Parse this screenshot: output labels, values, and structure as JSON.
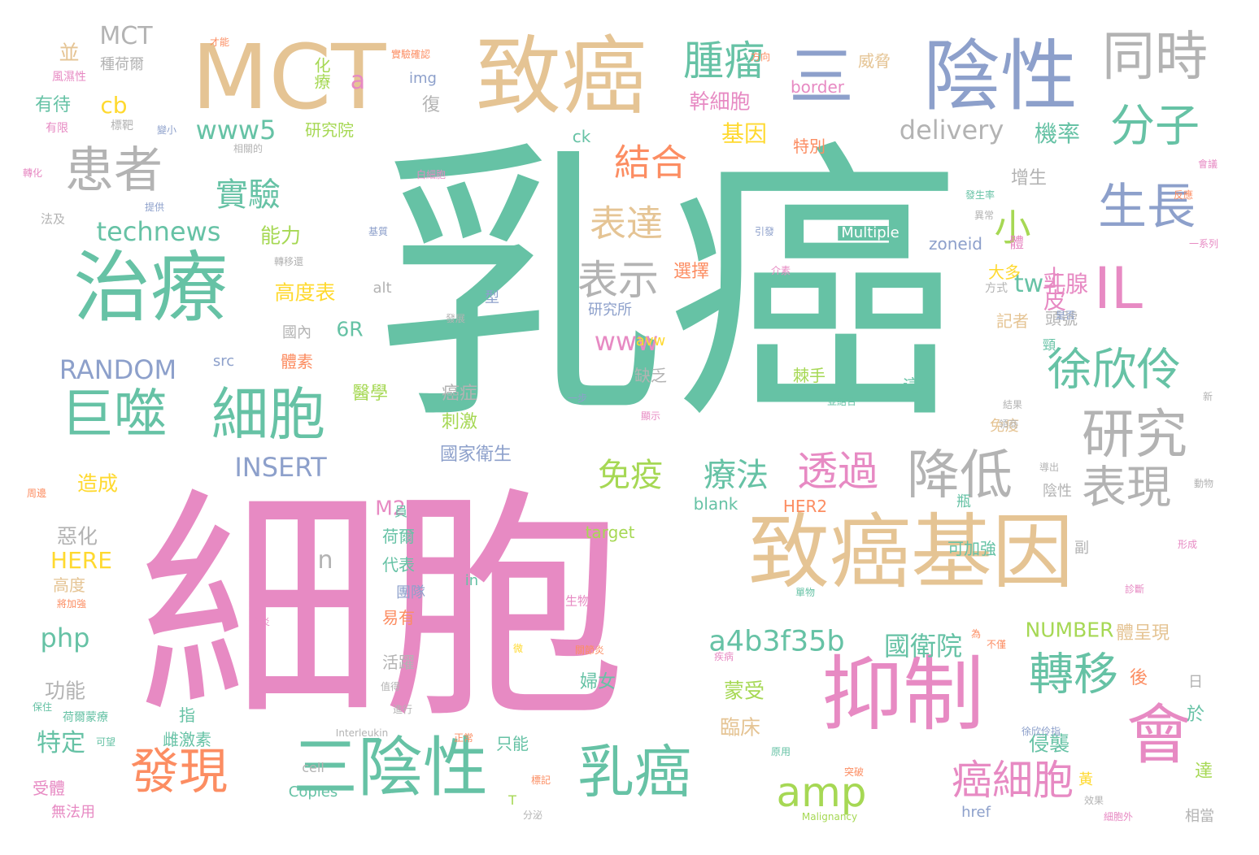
{
  "title": "",
  "words": [
    {
      "text": "乳癌",
      "color": "#66c2a5"
    },
    {
      "text": "細胞",
      "color": "#e78ac3"
    },
    {
      "text": "致癌",
      "color": "#e5c494"
    },
    {
      "text": "MCT",
      "color": "#e5c494"
    },
    {
      "text": "陰性",
      "color": "#8da0cb"
    },
    {
      "text": "三",
      "color": "#8da0cb"
    },
    {
      "text": "同時",
      "color": "#b3b3b3"
    },
    {
      "text": "治療",
      "color": "#66c2a5"
    },
    {
      "text": "患者",
      "color": "#b3b3b3"
    },
    {
      "text": "腫瘤",
      "color": "#66c2a5"
    },
    {
      "text": "分子",
      "color": "#66c2a5"
    },
    {
      "text": "致癌基因",
      "color": "#e5c494"
    },
    {
      "text": "抑制",
      "color": "#e78ac3"
    },
    {
      "text": "會",
      "color": "#e78ac3"
    },
    {
      "text": "三陰性",
      "color": "#66c2a5"
    },
    {
      "text": "乳癌",
      "color": "#66c2a5"
    },
    {
      "text": "發現",
      "color": "#fc8d62"
    },
    {
      "text": "巨噬",
      "color": "#66c2a5"
    },
    {
      "text": "細胞",
      "color": "#66c2a5"
    },
    {
      "text": "研究",
      "color": "#b3b3b3"
    },
    {
      "text": "降低",
      "color": "#b3b3b3"
    },
    {
      "text": "表現",
      "color": "#b3b3b3"
    },
    {
      "text": "徐欣伶",
      "color": "#66c2a5"
    },
    {
      "text": "生長",
      "color": "#8da0cb"
    },
    {
      "text": "IL",
      "color": "#e78ac3"
    },
    {
      "text": "小",
      "color": "#a6d854"
    },
    {
      "text": "結合",
      "color": "#fc8d62"
    },
    {
      "text": "表達",
      "color": "#e5c494"
    },
    {
      "text": "表示",
      "color": "#b3b3b3"
    },
    {
      "text": "實驗",
      "color": "#66c2a5"
    },
    {
      "text": "透過",
      "color": "#e78ac3"
    },
    {
      "text": "轉移",
      "color": "#66c2a5"
    },
    {
      "text": "癌細胞",
      "color": "#e78ac3"
    },
    {
      "text": "amp",
      "color": "#a6d854"
    },
    {
      "text": "免疫",
      "color": "#a6d854"
    },
    {
      "text": "療法",
      "color": "#66c2a5"
    },
    {
      "text": "a4b3f35b",
      "color": "#66c2a5"
    },
    {
      "text": "國衛院",
      "color": "#66c2a5"
    },
    {
      "text": "delivery",
      "color": "#b3b3b3"
    },
    {
      "text": "technews",
      "color": "#66c2a5"
    },
    {
      "text": "www5",
      "color": "#66c2a5"
    },
    {
      "text": "RANDOM",
      "color": "#8da0cb"
    },
    {
      "text": "INSERT",
      "color": "#8da0cb"
    },
    {
      "text": "www",
      "color": "#e78ac3"
    },
    {
      "text": "php",
      "color": "#66c2a5"
    },
    {
      "text": "NUMBER",
      "color": "#a6d854"
    },
    {
      "text": "HERE",
      "color": "#ffd92f"
    },
    {
      "text": "幹細胞",
      "color": "#e78ac3"
    },
    {
      "text": "基因",
      "color": "#ffd92f"
    },
    {
      "text": "機率",
      "color": "#66c2a5"
    },
    {
      "text": "乳腺",
      "color": "#e78ac3"
    },
    {
      "text": "上皮",
      "color": "#e78ac3"
    },
    {
      "text": "tw",
      "color": "#66c2a5"
    },
    {
      "text": "a",
      "color": "#e78ac3"
    },
    {
      "text": "cb",
      "color": "#ffd92f"
    },
    {
      "text": "能力",
      "color": "#a6d854"
    },
    {
      "text": "高度表",
      "color": "#ffd92f"
    },
    {
      "text": "6R",
      "color": "#66c2a5"
    },
    {
      "text": "M2",
      "color": "#e78ac3"
    },
    {
      "text": "n",
      "color": "#b3b3b3"
    },
    {
      "text": "癌症",
      "color": "#b3b3b3"
    },
    {
      "text": "刺激",
      "color": "#a6d854"
    },
    {
      "text": "國家衛生",
      "color": "#8da0cb"
    },
    {
      "text": "造成",
      "color": "#ffd92f"
    },
    {
      "text": "惡化",
      "color": "#b3b3b3"
    },
    {
      "text": "功能",
      "color": "#b3b3b3"
    },
    {
      "text": "特定",
      "color": "#66c2a5"
    },
    {
      "text": "蒙受",
      "color": "#a6d854"
    },
    {
      "text": "臨床",
      "color": "#e5c494"
    },
    {
      "text": "侵襲",
      "color": "#66c2a5"
    },
    {
      "text": "婦女",
      "color": "#66c2a5"
    },
    {
      "text": "研究院",
      "color": "#a6d854"
    },
    {
      "text": "並",
      "color": "#e5c494"
    },
    {
      "text": "有待",
      "color": "#66c2a5"
    },
    {
      "text": "特別",
      "color": "#fc8d62"
    },
    {
      "text": "增生",
      "color": "#b3b3b3"
    },
    {
      "text": "化療",
      "color": "#a6d854"
    },
    {
      "text": "威脅",
      "color": "#e5c494"
    },
    {
      "text": "border",
      "color": "#e78ac3"
    },
    {
      "text": "img",
      "color": "#8da0cb"
    },
    {
      "text": "ck",
      "color": "#66c2a5"
    },
    {
      "text": "Multiple",
      "color": "#ffffff"
    },
    {
      "text": "zoneid",
      "color": "#8da0cb"
    },
    {
      "text": "選擇",
      "color": "#fc8d62"
    },
    {
      "text": "大多",
      "color": "#ffd92f"
    },
    {
      "text": "記者",
      "color": "#e5c494"
    },
    {
      "text": "頭號",
      "color": "#b3b3b3"
    },
    {
      "text": "研究所",
      "color": "#8da0cb"
    },
    {
      "text": "缺乏",
      "color": "#b3b3b3"
    },
    {
      "text": "棘手",
      "color": "#a6d854"
    },
    {
      "text": "這些",
      "color": "#66c2a5"
    },
    {
      "text": "醫學",
      "color": "#a6d854"
    },
    {
      "text": "體素",
      "color": "#fc8d62"
    },
    {
      "text": "國內",
      "color": "#b3b3b3"
    },
    {
      "text": "src",
      "color": "#8da0cb"
    },
    {
      "text": "avw",
      "color": "#ffd92f"
    },
    {
      "text": "免疫",
      "color": "#e5c494"
    },
    {
      "text": "陰性",
      "color": "#b3b3b3"
    },
    {
      "text": "blank",
      "color": "#66c2a5"
    },
    {
      "text": "HER2",
      "color": "#fc8d62"
    },
    {
      "text": "target",
      "color": "#a6d854"
    },
    {
      "text": "可加強",
      "color": "#66c2a5"
    },
    {
      "text": "荷爾",
      "color": "#66c2a5"
    },
    {
      "text": "代表",
      "color": "#66c2a5"
    },
    {
      "text": "團隊",
      "color": "#8da0cb"
    },
    {
      "text": "易有",
      "color": "#fc8d62"
    },
    {
      "text": "活躍",
      "color": "#b3b3b3"
    },
    {
      "text": "體呈現",
      "color": "#e5c494"
    },
    {
      "text": "後",
      "color": "#fc8d62"
    },
    {
      "text": "於",
      "color": "#66c2a5"
    },
    {
      "text": "黃",
      "color": "#ffd92f"
    },
    {
      "text": "達",
      "color": "#a6d854"
    },
    {
      "text": "相當",
      "color": "#b3b3b3"
    },
    {
      "text": "href",
      "color": "#8da0cb"
    },
    {
      "text": "Copies",
      "color": "#66c2a5"
    },
    {
      "text": "cell",
      "color": "#b3b3b3"
    },
    {
      "text": "只能",
      "color": "#66c2a5"
    },
    {
      "text": "指",
      "color": "#66c2a5"
    },
    {
      "text": "雌激素",
      "color": "#66c2a5"
    },
    {
      "text": "受體",
      "color": "#e78ac3"
    },
    {
      "text": "無法用",
      "color": "#e78ac3"
    },
    {
      "text": "MCT",
      "color": "#b3b3b3"
    },
    {
      "text": "種荷爾",
      "color": "#b3b3b3"
    },
    {
      "text": "風濕性",
      "color": "#e78ac3"
    },
    {
      "text": "有限",
      "color": "#e78ac3"
    },
    {
      "text": "標靶",
      "color": "#b3b3b3"
    },
    {
      "text": "法及",
      "color": "#b3b3b3"
    },
    {
      "text": "提供",
      "color": "#8da0cb"
    },
    {
      "text": "復",
      "color": "#b3b3b3"
    },
    {
      "text": "alt",
      "color": "#b3b3b3"
    },
    {
      "text": "型",
      "color": "#8da0cb"
    },
    {
      "text": "員",
      "color": "#66c2a5"
    },
    {
      "text": "瓶",
      "color": "#66c2a5"
    },
    {
      "text": "副",
      "color": "#b3b3b3"
    },
    {
      "text": "in",
      "color": "#66c2a5"
    },
    {
      "text": "高度",
      "color": "#e5c494"
    },
    {
      "text": "生物",
      "color": "#e78ac3"
    },
    {
      "text": "日",
      "color": "#b3b3b3"
    },
    {
      "text": "動物",
      "color": "#b3b3b3"
    },
    {
      "text": "形成",
      "color": "#e78ac3"
    },
    {
      "text": "診斷",
      "color": "#e78ac3"
    },
    {
      "text": "Malignancy",
      "color": "#a6d854"
    },
    {
      "text": "Interleukin",
      "color": "#b3b3b3"
    },
    {
      "text": "T",
      "color": "#a6d854"
    },
    {
      "text": "突破",
      "color": "#fc8d62"
    },
    {
      "text": "發生率",
      "color": "#66c2a5"
    },
    {
      "text": "轉移還",
      "color": "#b3b3b3"
    },
    {
      "text": "一系列",
      "color": "#e78ac3"
    },
    {
      "text": "介素",
      "color": "#e78ac3"
    },
    {
      "text": "方式",
      "color": "#b3b3b3"
    },
    {
      "text": "頸",
      "color": "#66c2a5"
    },
    {
      "text": "體",
      "color": "#e78ac3"
    },
    {
      "text": "是否",
      "color": "#8da0cb"
    },
    {
      "text": "結果",
      "color": "#b3b3b3"
    },
    {
      "text": "新",
      "color": "#b3b3b3"
    },
    {
      "text": "效果",
      "color": "#b3b3b3"
    },
    {
      "text": "原用",
      "color": "#66c2a5"
    },
    {
      "text": "荷爾蒙療",
      "color": "#66c2a5"
    },
    {
      "text": "可望",
      "color": "#66c2a5"
    },
    {
      "text": "標記",
      "color": "#fc8d62"
    },
    {
      "text": "分泌",
      "color": "#b3b3b3"
    },
    {
      "text": "徐欣伶指",
      "color": "#8da0cb"
    },
    {
      "text": "細胞外",
      "color": "#e78ac3"
    },
    {
      "text": "實驗確認",
      "color": "#fc8d62"
    },
    {
      "text": "才能",
      "color": "#fc8d62"
    },
    {
      "text": "方向",
      "color": "#fc8d62"
    },
    {
      "text": "會議",
      "color": "#e78ac3"
    },
    {
      "text": "反應",
      "color": "#fc8d62"
    },
    {
      "text": "異常",
      "color": "#b3b3b3"
    },
    {
      "text": "引發",
      "color": "#8da0cb"
    },
    {
      "text": "轉化",
      "color": "#e78ac3"
    },
    {
      "text": "白細胞",
      "color": "#e78ac3"
    },
    {
      "text": "周邊",
      "color": "#fc8d62"
    },
    {
      "text": "關節炎",
      "color": "#fc8d62"
    },
    {
      "text": "不僅",
      "color": "#fc8d62"
    },
    {
      "text": "為",
      "color": "#fc8d62"
    },
    {
      "text": "發炎",
      "color": "#e78ac3"
    },
    {
      "text": "微",
      "color": "#ffd92f"
    },
    {
      "text": "變小",
      "color": "#8da0cb"
    },
    {
      "text": "相關的",
      "color": "#b3b3b3"
    },
    {
      "text": "並結合",
      "color": "#66c2a5"
    },
    {
      "text": "一步",
      "color": "#8da0cb"
    },
    {
      "text": "顯示",
      "color": "#e78ac3"
    },
    {
      "text": "領商",
      "color": "#b3b3b3"
    },
    {
      "text": "進行",
      "color": "#b3b3b3"
    },
    {
      "text": "正常",
      "color": "#fc8d62"
    },
    {
      "text": "疾病",
      "color": "#e78ac3"
    },
    {
      "text": "單物",
      "color": "#66c2a5"
    },
    {
      "text": "將加強",
      "color": "#fc8d62"
    },
    {
      "text": "保住",
      "color": "#66c2a5"
    },
    {
      "text": "值得",
      "color": "#b3b3b3"
    },
    {
      "text": "發展",
      "color": "#b3b3b3"
    },
    {
      "text": "導出",
      "color": "#b3b3b3"
    },
    {
      "text": "基質",
      "color": "#8da0cb"
    }
  ]
}
